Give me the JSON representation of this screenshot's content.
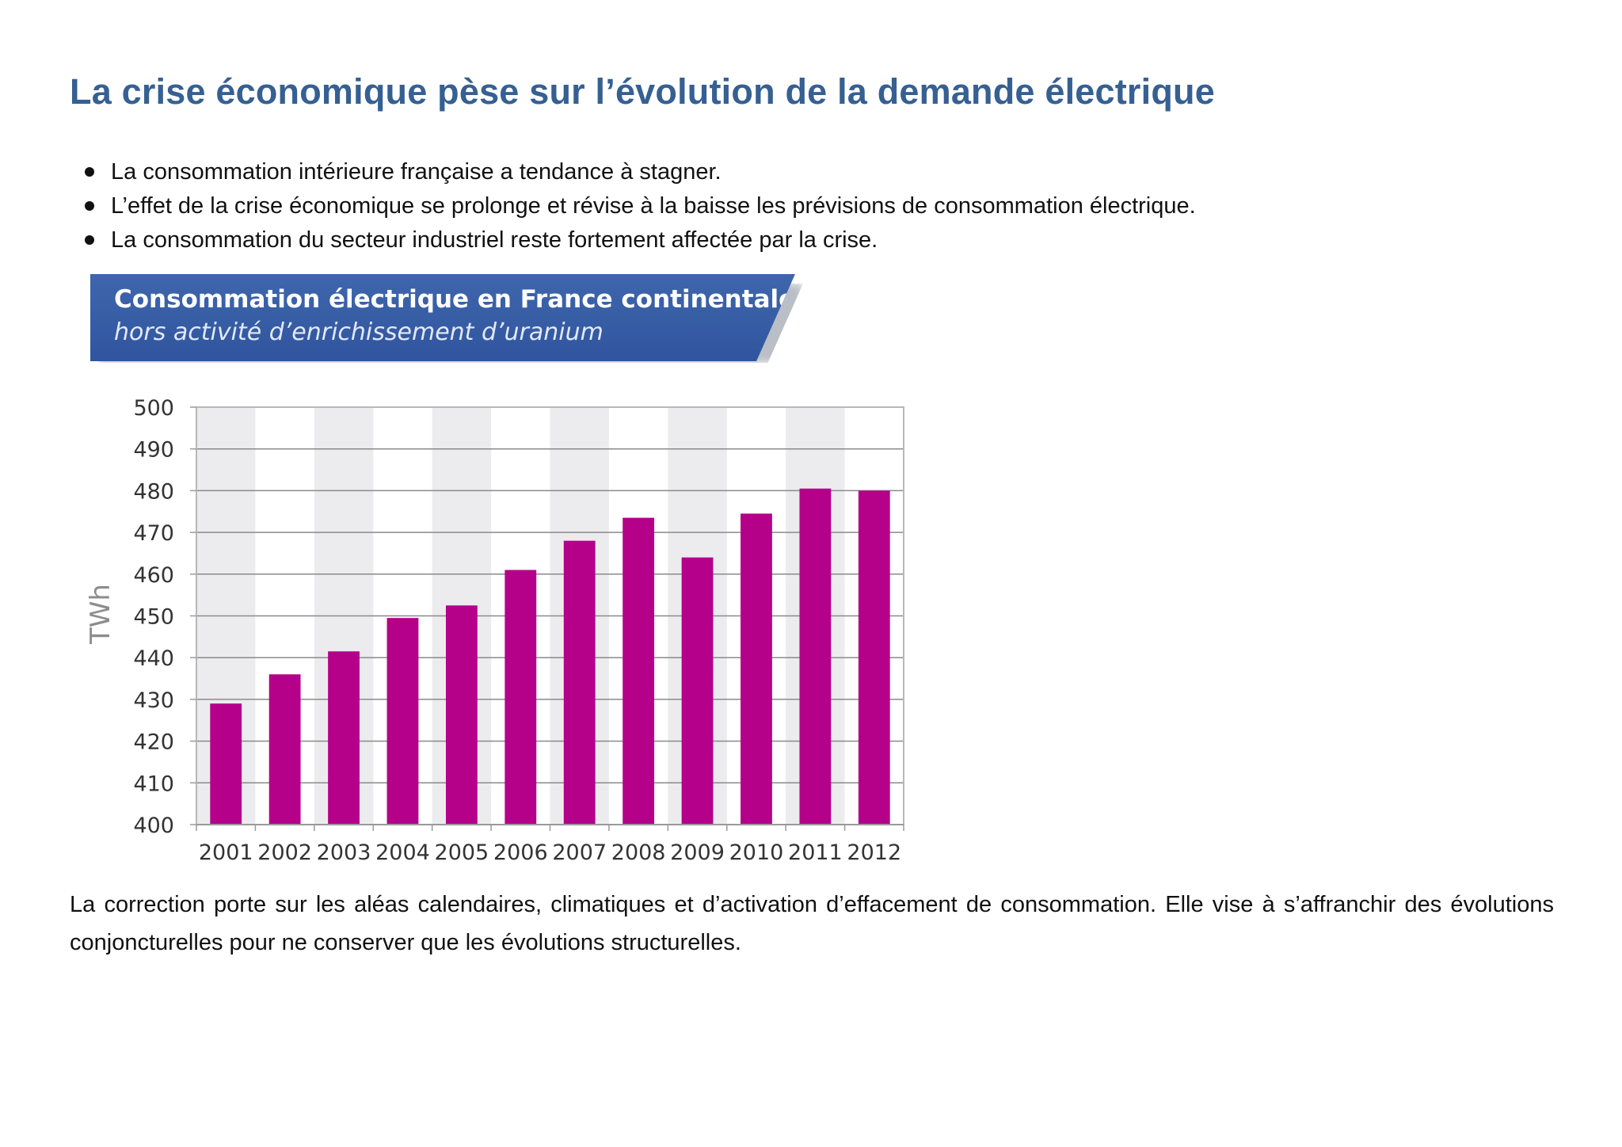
{
  "title": "La crise économique pèse sur l’évolution de la demande électrique",
  "bullets": [
    "La consommation intérieure française a tendance à stagner.",
    "L’effet de la crise économique se prolonge et révise à la baisse les prévisions de consommation électrique.",
    "La consommation du secteur industriel reste fortement affectée par la crise."
  ],
  "chart_banner": {
    "title": "Consommation électrique en France continentale",
    "subtitle": "hors activité d’enrichissement d’uranium"
  },
  "chart_data": {
    "type": "bar",
    "title": "Consommation électrique en France continentale",
    "subtitle": "hors activité d’enrichissement d’uranium",
    "categories": [
      "2001",
      "2002",
      "2003",
      "2004",
      "2005",
      "2006",
      "2007",
      "2008",
      "2009",
      "2010",
      "2011",
      "2012"
    ],
    "values": [
      429,
      436,
      441.5,
      449.5,
      452.5,
      461,
      468,
      473.5,
      464,
      474.5,
      480.5,
      480
    ],
    "xlabel": "",
    "ylabel": "TWh",
    "ylim": [
      400,
      500
    ],
    "yticks": [
      400,
      410,
      420,
      430,
      440,
      450,
      460,
      470,
      480,
      490,
      500
    ],
    "grid": true,
    "legend": "none",
    "bar_color": "#b5008a"
  },
  "paragraph": "La correction porte sur les aléas calendaires, climatiques et d’activation d’effacement de consommation. Elle vise à s’affranchir des évolutions conjoncturelles pour ne conserver que les évolutions structurelles.",
  "colors": {
    "title": "#366092",
    "banner": "#30559e",
    "bar": "#b5008a",
    "stripe": "#ececef",
    "grid": "#8a8a8a",
    "axis_text": "#333333",
    "ylabel": "#8c8c8c"
  }
}
